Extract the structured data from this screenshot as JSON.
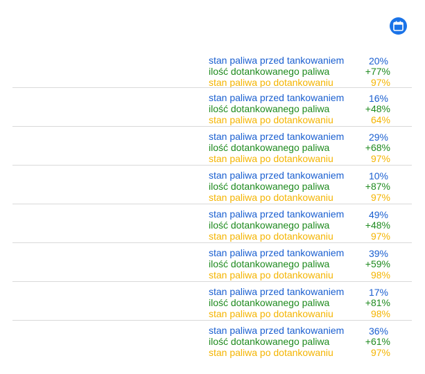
{
  "calendar_icon": "calendar-icon",
  "colors": {
    "before": "#1a5fd0",
    "added": "#1e8a1e",
    "after": "#f4b400",
    "accent": "#1a73e8",
    "divider": "#d9d9d9"
  },
  "labels": {
    "before": "stan paliwa przed tankowaniem",
    "added": "ilość dotankowanego paliwa",
    "after": "stan paliwa po dotankowaniu"
  },
  "entries": [
    {
      "before": "20%",
      "added": "+77%",
      "after": "97%"
    },
    {
      "before": "16%",
      "added": "+48%",
      "after": "64%"
    },
    {
      "before": "29%",
      "added": "+68%",
      "after": "97%"
    },
    {
      "before": "10%",
      "added": "+87%",
      "after": "97%"
    },
    {
      "before": "49%",
      "added": "+48%",
      "after": "97%"
    },
    {
      "before": "39%",
      "added": "+59%",
      "after": "98%"
    },
    {
      "before": "17%",
      "added": "+81%",
      "after": "98%"
    },
    {
      "before": "36%",
      "added": "+61%",
      "after": "97%"
    }
  ]
}
